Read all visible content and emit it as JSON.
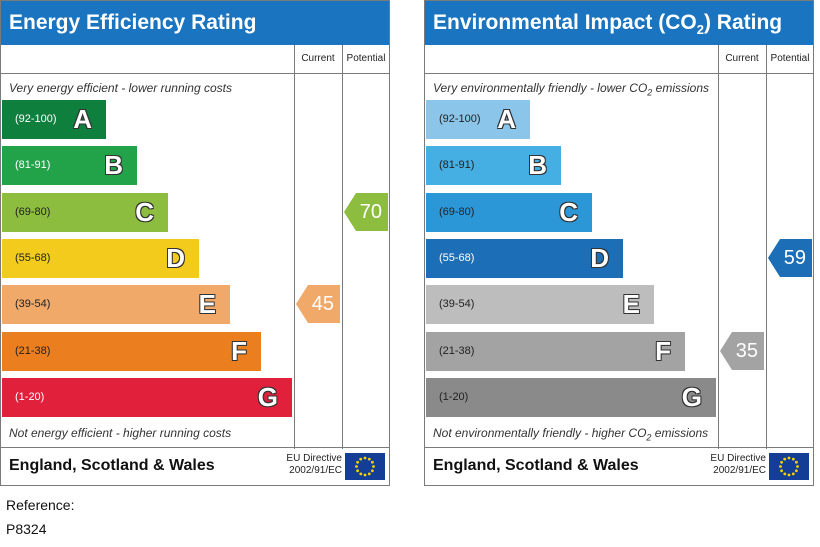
{
  "panels": [
    {
      "id": "energy",
      "title_main": "Energy Efficiency Rating",
      "title_sub": "",
      "title_end": "",
      "col_current": "Current",
      "col_potential": "Potential",
      "top_caption": "Very energy efficient - lower running costs",
      "top_caption_sub": "",
      "top_caption_end": "",
      "bottom_caption": "Not energy efficient - higher running costs",
      "bottom_caption_sub": "",
      "bottom_caption_end": "",
      "bands": [
        {
          "range": "(92-100)",
          "letter": "A",
          "color": "#0f7f3e"
        },
        {
          "range": "(81-91)",
          "letter": "B",
          "color": "#22a34a"
        },
        {
          "range": "(69-80)",
          "letter": "C",
          "color": "#8cbd3f"
        },
        {
          "range": "(55-68)",
          "letter": "D",
          "color": "#f2cb1c"
        },
        {
          "range": "(39-54)",
          "letter": "E",
          "color": "#f0a968"
        },
        {
          "range": "(21-38)",
          "letter": "F",
          "color": "#eb7f1f"
        },
        {
          "range": "(1-20)",
          "letter": "G",
          "color": "#e1213b"
        }
      ],
      "current": {
        "value": "45",
        "band": "E",
        "color": "#f0a968"
      },
      "potential": {
        "value": "70",
        "band": "C",
        "color": "#8cbd3f"
      },
      "country": "England, Scotland & Wales",
      "directive_line1": "EU Directive",
      "directive_line2": "2002/91/EC"
    },
    {
      "id": "environment",
      "title_main": "Environmental Impact (CO",
      "title_sub": "2",
      "title_end": ") Rating",
      "col_current": "Current",
      "col_potential": "Potential",
      "top_caption": "Very environmentally friendly - lower CO",
      "top_caption_sub": "2",
      "top_caption_end": " emissions",
      "bottom_caption": "Not environmentally friendly - higher CO",
      "bottom_caption_sub": "2",
      "bottom_caption_end": " emissions",
      "bands": [
        {
          "range": "(92-100)",
          "letter": "A",
          "color": "#8bc5ea"
        },
        {
          "range": "(81-91)",
          "letter": "B",
          "color": "#45aee3"
        },
        {
          "range": "(69-80)",
          "letter": "C",
          "color": "#2c97d7"
        },
        {
          "range": "(55-68)",
          "letter": "D",
          "color": "#1c6fb6"
        },
        {
          "range": "(39-54)",
          "letter": "E",
          "color": "#bdbdbd"
        },
        {
          "range": "(21-38)",
          "letter": "F",
          "color": "#a3a3a3"
        },
        {
          "range": "(1-20)",
          "letter": "G",
          "color": "#8a8a8a"
        }
      ],
      "current": {
        "value": "35",
        "band": "F",
        "color": "#a3a3a3"
      },
      "potential": {
        "value": "59",
        "band": "D",
        "color": "#1c6fb6"
      },
      "country": "England, Scotland & Wales",
      "directive_line1": "EU Directive",
      "directive_line2": "2002/91/EC"
    }
  ],
  "reference": {
    "label": "Reference:",
    "value": "P8324"
  },
  "chart_data": [
    {
      "type": "bar",
      "title": "Energy Efficiency Rating",
      "categories": [
        "A",
        "B",
        "C",
        "D",
        "E",
        "F",
        "G"
      ],
      "ranges": [
        "(92-100)",
        "(81-91)",
        "(69-80)",
        "(55-68)",
        "(39-54)",
        "(21-38)",
        "(1-20)"
      ],
      "series": [
        {
          "name": "Current",
          "value": 45,
          "band": "E"
        },
        {
          "name": "Potential",
          "value": 70,
          "band": "C"
        }
      ]
    },
    {
      "type": "bar",
      "title": "Environmental Impact (CO2) Rating",
      "categories": [
        "A",
        "B",
        "C",
        "D",
        "E",
        "F",
        "G"
      ],
      "ranges": [
        "(92-100)",
        "(81-91)",
        "(69-80)",
        "(55-68)",
        "(39-54)",
        "(21-38)",
        "(1-20)"
      ],
      "series": [
        {
          "name": "Current",
          "value": 35,
          "band": "F"
        },
        {
          "name": "Potential",
          "value": 59,
          "band": "D"
        }
      ]
    }
  ]
}
